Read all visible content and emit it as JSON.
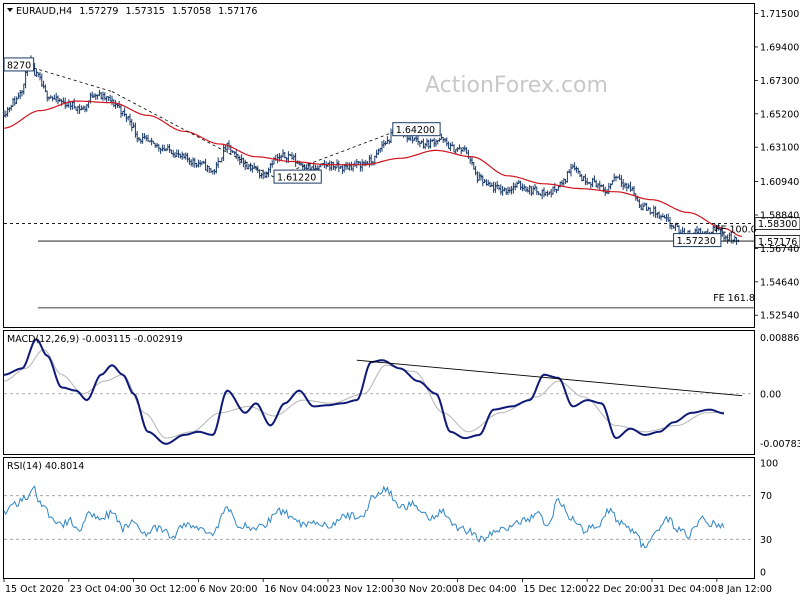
{
  "watermark": "ActionForex.com",
  "chart_data": [
    {
      "type": "line",
      "panel": "price",
      "header": {
        "symbol": "EURAUD,H4",
        "open": "1.57279",
        "high": "1.57315",
        "low": "1.57058",
        "close": "1.57176"
      },
      "ylim": [
        1.518,
        1.721
      ],
      "y_ticks": [
        "1.71500",
        "1.69400",
        "1.67300",
        "1.65200",
        "1.63100",
        "1.60940",
        "1.58840",
        "1.56740",
        "1.54640",
        "1.52540"
      ],
      "x_ticks": [
        {
          "label": "15 Oct 2020",
          "i": 0
        },
        {
          "label": "23 Oct 04:00",
          "i": 36
        },
        {
          "label": "30 Oct 12:00",
          "i": 72
        },
        {
          "label": "6 Nov 20:00",
          "i": 108
        },
        {
          "label": "16 Nov 04:00",
          "i": 144
        },
        {
          "label": "23 Nov 12:00",
          "i": 180
        },
        {
          "label": "30 Nov 20:00",
          "i": 216
        },
        {
          "label": "8 Dec 04:00",
          "i": 252
        },
        {
          "label": "15 Dec 12:00",
          "i": 288
        },
        {
          "label": "22 Dec 20:00",
          "i": 324
        },
        {
          "label": "31 Dec 04:00",
          "i": 360
        },
        {
          "label": "8 Jan 12:00",
          "i": 396
        }
      ],
      "close_anchors": [
        [
          0,
          1.653
        ],
        [
          6,
          1.66
        ],
        [
          10,
          1.668
        ],
        [
          14,
          1.684
        ],
        [
          18,
          1.676
        ],
        [
          24,
          1.664
        ],
        [
          30,
          1.66
        ],
        [
          36,
          1.658
        ],
        [
          44,
          1.655
        ],
        [
          50,
          1.665
        ],
        [
          56,
          1.662
        ],
        [
          62,
          1.658
        ],
        [
          68,
          1.65
        ],
        [
          76,
          1.636
        ],
        [
          84,
          1.632
        ],
        [
          92,
          1.629
        ],
        [
          100,
          1.624
        ],
        [
          108,
          1.621
        ],
        [
          116,
          1.616
        ],
        [
          124,
          1.631
        ],
        [
          130,
          1.624
        ],
        [
          136,
          1.619
        ],
        [
          144,
          1.614
        ],
        [
          150,
          1.623
        ],
        [
          158,
          1.626
        ],
        [
          164,
          1.621
        ],
        [
          172,
          1.617
        ],
        [
          180,
          1.62
        ],
        [
          188,
          1.618
        ],
        [
          196,
          1.62
        ],
        [
          204,
          1.622
        ],
        [
          212,
          1.634
        ],
        [
          218,
          1.642
        ],
        [
          226,
          1.637
        ],
        [
          234,
          1.633
        ],
        [
          242,
          1.636
        ],
        [
          250,
          1.63
        ],
        [
          256,
          1.629
        ],
        [
          264,
          1.611
        ],
        [
          270,
          1.606
        ],
        [
          278,
          1.604
        ],
        [
          286,
          1.607
        ],
        [
          294,
          1.604
        ],
        [
          302,
          1.602
        ],
        [
          310,
          1.608
        ],
        [
          316,
          1.62
        ],
        [
          322,
          1.611
        ],
        [
          328,
          1.609
        ],
        [
          334,
          1.603
        ],
        [
          340,
          1.613
        ],
        [
          348,
          1.605
        ],
        [
          354,
          1.594
        ],
        [
          360,
          1.591
        ],
        [
          366,
          1.586
        ],
        [
          372,
          1.581
        ],
        [
          378,
          1.576
        ],
        [
          384,
          1.578
        ],
        [
          390,
          1.576
        ],
        [
          396,
          1.58
        ],
        [
          402,
          1.574
        ],
        [
          408,
          1.572
        ]
      ],
      "sma_anchors": [
        [
          0,
          1.643
        ],
        [
          20,
          1.654
        ],
        [
          40,
          1.66
        ],
        [
          60,
          1.659
        ],
        [
          80,
          1.651
        ],
        [
          100,
          1.641
        ],
        [
          120,
          1.633
        ],
        [
          140,
          1.625
        ],
        [
          160,
          1.622
        ],
        [
          180,
          1.62
        ],
        [
          200,
          1.62
        ],
        [
          220,
          1.624
        ],
        [
          240,
          1.629
        ],
        [
          260,
          1.625
        ],
        [
          280,
          1.613
        ],
        [
          300,
          1.608
        ],
        [
          320,
          1.605
        ],
        [
          340,
          1.603
        ],
        [
          360,
          1.598
        ],
        [
          380,
          1.59
        ],
        [
          400,
          1.58
        ],
        [
          410,
          1.575
        ]
      ],
      "dashed_lines": [
        {
          "from": [
            10,
            1.683
          ],
          "to": [
            60,
            1.666
          ]
        },
        {
          "from": [
            60,
            1.666
          ],
          "to": [
            150,
            1.6122
          ]
        },
        {
          "from": [
            150,
            1.6122
          ],
          "to": [
            220,
            1.642
          ]
        }
      ],
      "hlines": [
        {
          "y": 1.583,
          "style": "dashed"
        },
        {
          "y": 1.572,
          "style": "solid"
        },
        {
          "y": 1.53,
          "style": "solid"
        }
      ],
      "annotations": [
        {
          "text": "8270",
          "i": 0,
          "y": 1.6827,
          "boxed": true
        },
        {
          "text": "1.64200",
          "i": 216,
          "y": 1.642,
          "boxed": true
        },
        {
          "text": "1.61220",
          "i": 150,
          "y": 1.6122,
          "boxed": true
        },
        {
          "text": "1.57230",
          "i": 372,
          "y": 1.5723,
          "boxed": true
        },
        {
          "text": "FE 100.0",
          "i": 395,
          "y": 1.576,
          "boxed": false
        },
        {
          "text": "FE 161.8",
          "i": 394,
          "y": 1.533,
          "boxed": false
        }
      ],
      "price_markers": [
        {
          "text": "1.58300",
          "y": 1.583
        },
        {
          "text": "1.57176",
          "y": 1.57176
        }
      ]
    },
    {
      "type": "line",
      "panel": "macd",
      "header": "MACD(12,26,9) -0.003115 -0.002919",
      "ylim": [
        -0.0095,
        0.0099
      ],
      "y_ticks": [
        "0.00886",
        "0.00",
        "-0.007834"
      ],
      "zero_line": 0.0,
      "macd_anchors": [
        [
          0,
          0.003
        ],
        [
          10,
          0.004
        ],
        [
          18,
          0.0086
        ],
        [
          24,
          0.006
        ],
        [
          32,
          0.001
        ],
        [
          40,
          0.0005
        ],
        [
          46,
          -0.001
        ],
        [
          54,
          0.003
        ],
        [
          60,
          0.0045
        ],
        [
          66,
          0.003
        ],
        [
          72,
          0.0
        ],
        [
          80,
          -0.006
        ],
        [
          90,
          -0.0079
        ],
        [
          100,
          -0.0065
        ],
        [
          108,
          -0.006
        ],
        [
          116,
          -0.0065
        ],
        [
          124,
          0.0005
        ],
        [
          134,
          -0.003
        ],
        [
          140,
          -0.0015
        ],
        [
          148,
          -0.005
        ],
        [
          156,
          -0.0015
        ],
        [
          164,
          0.0005
        ],
        [
          172,
          -0.002
        ],
        [
          180,
          -0.0018
        ],
        [
          188,
          -0.0015
        ],
        [
          196,
          -0.001
        ],
        [
          204,
          0.005
        ],
        [
          210,
          0.0053
        ],
        [
          220,
          0.004
        ],
        [
          230,
          0.002
        ],
        [
          240,
          0.0
        ],
        [
          248,
          -0.006
        ],
        [
          256,
          -0.007
        ],
        [
          264,
          -0.0065
        ],
        [
          272,
          -0.0025
        ],
        [
          282,
          -0.002
        ],
        [
          292,
          -0.001
        ],
        [
          300,
          0.003
        ],
        [
          308,
          0.0025
        ],
        [
          316,
          -0.002
        ],
        [
          324,
          -0.001
        ],
        [
          332,
          -0.0015
        ],
        [
          340,
          -0.007
        ],
        [
          348,
          -0.0055
        ],
        [
          356,
          -0.0065
        ],
        [
          364,
          -0.006
        ],
        [
          372,
          -0.0045
        ],
        [
          382,
          -0.003
        ],
        [
          392,
          -0.0025
        ],
        [
          400,
          -0.0031
        ]
      ],
      "signal_anchors": [
        [
          0,
          0.002
        ],
        [
          12,
          0.004
        ],
        [
          22,
          0.007
        ],
        [
          32,
          0.003
        ],
        [
          44,
          0.0
        ],
        [
          56,
          0.002
        ],
        [
          66,
          0.003
        ],
        [
          78,
          -0.003
        ],
        [
          90,
          -0.007
        ],
        [
          104,
          -0.006
        ],
        [
          120,
          -0.003
        ],
        [
          136,
          -0.002
        ],
        [
          150,
          -0.0035
        ],
        [
          166,
          -0.001
        ],
        [
          182,
          -0.0015
        ],
        [
          200,
          0.0
        ],
        [
          212,
          0.0045
        ],
        [
          228,
          0.0035
        ],
        [
          244,
          -0.003
        ],
        [
          258,
          -0.006
        ],
        [
          276,
          -0.003
        ],
        [
          296,
          -0.0005
        ],
        [
          308,
          0.002
        ],
        [
          322,
          -0.0005
        ],
        [
          340,
          -0.005
        ],
        [
          356,
          -0.006
        ],
        [
          374,
          -0.005
        ],
        [
          390,
          -0.003
        ],
        [
          400,
          -0.0029
        ]
      ],
      "trendline": {
        "from": [
          196,
          0.0053
        ],
        "to": [
          410,
          -0.0003
        ]
      }
    },
    {
      "type": "line",
      "panel": "rsi",
      "header": "RSI(14) 40.8014",
      "ylim": [
        0,
        100
      ],
      "y_ticks": [
        "100",
        "70",
        "30",
        "0"
      ],
      "levels": [
        70,
        30
      ],
      "rsi_anchors": [
        [
          0,
          55
        ],
        [
          6,
          62
        ],
        [
          12,
          68
        ],
        [
          16,
          78
        ],
        [
          20,
          62
        ],
        [
          26,
          52
        ],
        [
          32,
          42
        ],
        [
          36,
          47
        ],
        [
          42,
          40
        ],
        [
          48,
          54
        ],
        [
          54,
          50
        ],
        [
          60,
          54
        ],
        [
          66,
          40
        ],
        [
          72,
          46
        ],
        [
          78,
          36
        ],
        [
          86,
          40
        ],
        [
          94,
          32
        ],
        [
          100,
          44
        ],
        [
          108,
          40
        ],
        [
          116,
          36
        ],
        [
          124,
          58
        ],
        [
          130,
          44
        ],
        [
          138,
          40
        ],
        [
          144,
          42
        ],
        [
          152,
          56
        ],
        [
          160,
          52
        ],
        [
          166,
          44
        ],
        [
          174,
          46
        ],
        [
          182,
          42
        ],
        [
          190,
          52
        ],
        [
          198,
          50
        ],
        [
          206,
          70
        ],
        [
          212,
          76
        ],
        [
          220,
          60
        ],
        [
          228,
          62
        ],
        [
          236,
          50
        ],
        [
          244,
          56
        ],
        [
          250,
          42
        ],
        [
          258,
          38
        ],
        [
          266,
          30
        ],
        [
          272,
          36
        ],
        [
          282,
          42
        ],
        [
          290,
          48
        ],
        [
          296,
          54
        ],
        [
          302,
          42
        ],
        [
          308,
          66
        ],
        [
          316,
          48
        ],
        [
          322,
          38
        ],
        [
          330,
          44
        ],
        [
          336,
          56
        ],
        [
          342,
          46
        ],
        [
          350,
          38
        ],
        [
          356,
          22
        ],
        [
          362,
          34
        ],
        [
          368,
          50
        ],
        [
          374,
          40
        ],
        [
          380,
          34
        ],
        [
          388,
          48
        ],
        [
          394,
          44
        ],
        [
          400,
          40.8
        ]
      ]
    }
  ]
}
